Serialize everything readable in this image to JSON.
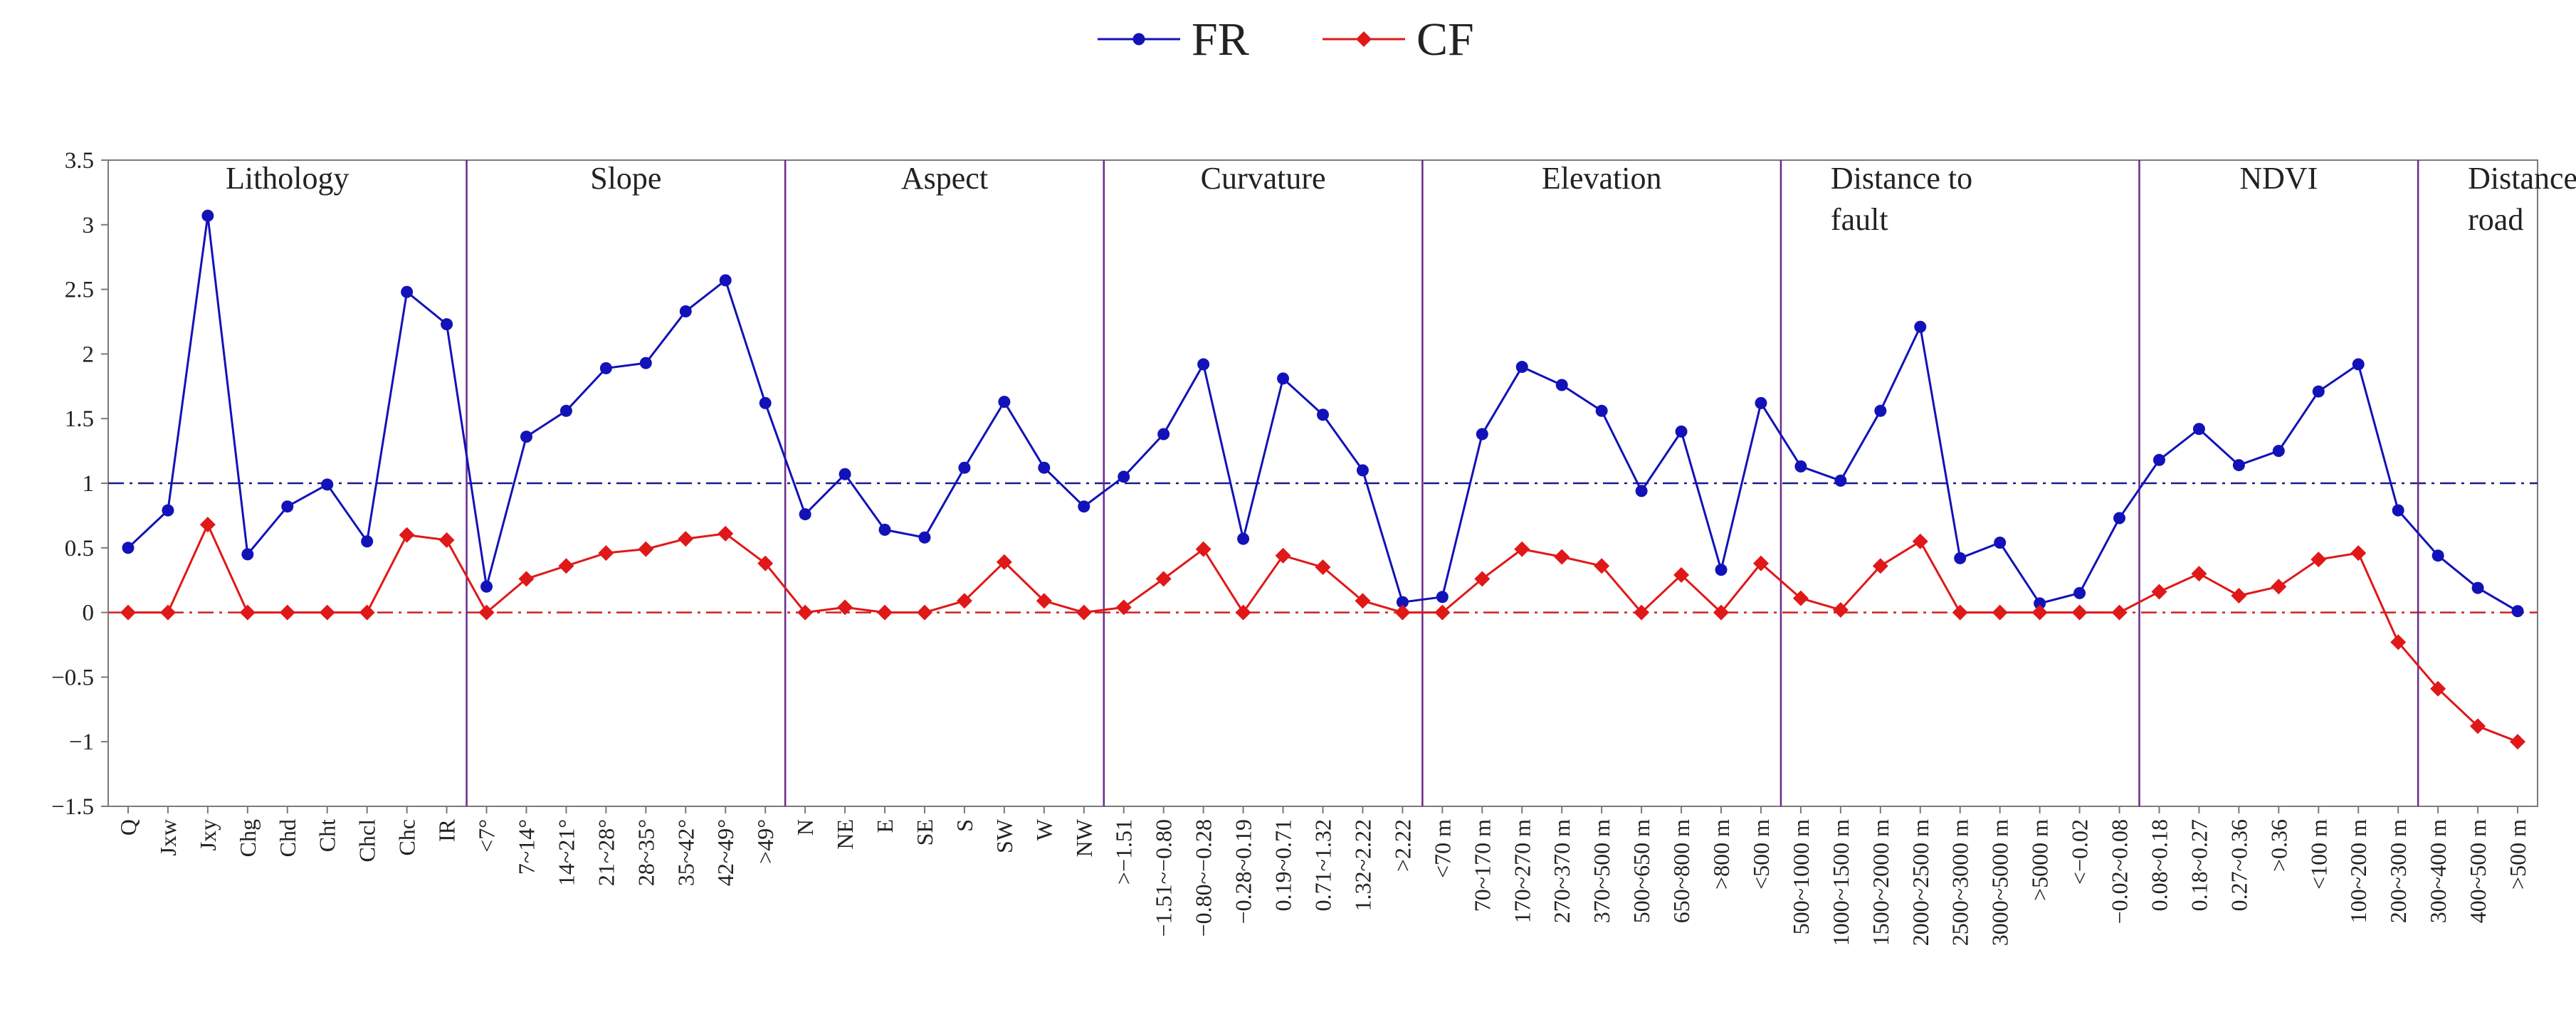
{
  "chart_data": {
    "type": "line",
    "title": "",
    "xlabel": "",
    "ylabel": "",
    "ylim": [
      -1.5,
      3.5
    ],
    "yticks": [
      3.5,
      3,
      2.5,
      2,
      1.5,
      1,
      0.5,
      0,
      -0.5,
      -1,
      -1.5
    ],
    "legend": {
      "position": "top-center",
      "entries": [
        "FR",
        "CF"
      ]
    },
    "reference_lines": [
      {
        "value": 1,
        "color": "#1a1a8c",
        "style": "dash-dot"
      },
      {
        "value": 0,
        "color": "#cc2222",
        "style": "dash-dot"
      }
    ],
    "groups": [
      {
        "label_lines": [
          "Lithology"
        ],
        "start": 0,
        "end": 8
      },
      {
        "label_lines": [
          "Slope"
        ],
        "start": 9,
        "end": 16
      },
      {
        "label_lines": [
          "Aspect"
        ],
        "start": 17,
        "end": 24
      },
      {
        "label_lines": [
          "Curvature"
        ],
        "start": 25,
        "end": 32
      },
      {
        "label_lines": [
          "Elevation"
        ],
        "start": 33,
        "end": 41
      },
      {
        "label_lines": [
          "Distance to",
          "fault"
        ],
        "start": 42,
        "end": 50
      },
      {
        "label_lines": [
          "NDVI"
        ],
        "start": 51,
        "end": 57
      },
      {
        "label_lines": [
          "Distance to",
          "road"
        ],
        "start": 58,
        "end": 64
      }
    ],
    "categories": [
      "Q",
      "Jxw",
      "Jxy",
      "Chg",
      "Chd",
      "Cht",
      "Chcl",
      "Chc",
      "IR",
      "<7°",
      "7~14°",
      "14~21°",
      "21~28°",
      "28~35°",
      "35~42°",
      "42~49°",
      ">49°",
      "N",
      "NE",
      "E",
      "SE",
      "S",
      "SW",
      "W",
      "NW",
      ">−1.51",
      "−1.51~−0.80",
      "−0.80~−0.28",
      "−0.28~0.19",
      "0.19~0.71",
      "0.71~1.32",
      "1.32~2.22",
      ">2.22",
      "<70 m",
      "70~170 m",
      "170~270 m",
      "270~370 m",
      "370~500 m",
      "500~650 m",
      "650~800 m",
      ">800 m",
      "<500 m",
      "500~1000 m",
      "1000~1500 m",
      "1500~2000 m",
      "2000~2500 m",
      "2500~3000 m",
      "3000~5000 m",
      ">5000 m",
      "<−0.02",
      "−0.02~0.08",
      "0.08~0.18",
      "0.18~0.27",
      "0.27~0.36",
      ">0.36",
      "<100 m",
      "100~200 m",
      "200~300 m",
      "300~400 m",
      "400~500 m",
      ">500 m"
    ],
    "series": [
      {
        "name": "FR",
        "color": "#1212b8",
        "marker": "circle",
        "values": [
          0.5,
          0.79,
          3.07,
          0.45,
          0.82,
          0.99,
          0.55,
          2.48,
          2.23,
          0.2,
          1.36,
          1.56,
          1.89,
          1.93,
          2.33,
          2.57,
          1.62,
          0.76,
          1.07,
          0.64,
          0.58,
          1.12,
          1.63,
          1.12,
          0.82,
          1.05,
          1.38,
          1.92,
          0.57,
          1.81,
          1.53,
          1.1,
          0.08,
          0.12,
          1.38,
          1.9,
          1.76,
          1.56,
          0.94,
          1.4,
          0.33,
          1.62,
          1.13,
          1.02,
          1.56,
          2.21,
          0.42,
          0.54,
          0.07,
          0.15,
          0.73,
          1.18,
          1.42,
          1.14,
          1.25,
          1.71,
          1.92,
          0.79,
          0.44,
          0.19,
          0.01
        ]
      },
      {
        "name": "CF",
        "color": "#e01818",
        "marker": "diamond",
        "values": [
          0,
          0,
          0.68,
          0,
          0,
          0,
          0,
          0.6,
          0.56,
          0,
          0.26,
          0.36,
          0.46,
          0.49,
          0.57,
          0.61,
          0.38,
          0,
          0.04,
          0,
          0,
          0.09,
          0.39,
          0.09,
          0,
          0.04,
          0.26,
          0.49,
          0,
          0.44,
          0.35,
          0.09,
          0,
          0,
          0.26,
          0.49,
          0.43,
          0.36,
          0,
          0.29,
          0,
          0.38,
          0.11,
          0.02,
          0.36,
          0.55,
          0,
          0,
          0,
          0,
          0,
          0.16,
          0.3,
          0.13,
          0.2,
          0.41,
          0.46,
          -0.23,
          -0.59,
          -0.88,
          -1
        ]
      }
    ]
  }
}
